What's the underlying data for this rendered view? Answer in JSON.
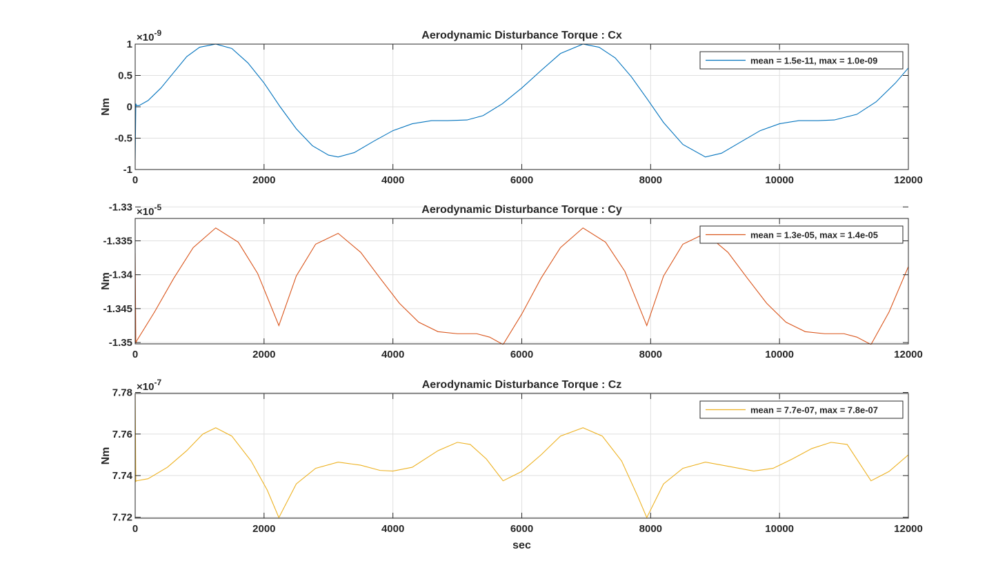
{
  "chart_data": [
    {
      "type": "line",
      "title": "Aerodynamic Disturbance Torque : Cx",
      "ylabel": "Nm",
      "xlabel": "",
      "xlim": [
        0,
        12000
      ],
      "ylim": [
        -1,
        1
      ],
      "exponent_base": "×10",
      "exponent_power": "-9",
      "xticks": [
        0,
        2000,
        4000,
        6000,
        8000,
        10000,
        12000
      ],
      "xtick_labels": [
        "0",
        "2000",
        "4000",
        "6000",
        "8000",
        "10000",
        "12000"
      ],
      "yticks": [
        -1,
        -0.5,
        0,
        0.5,
        1
      ],
      "ytick_labels": [
        "-1",
        "-0.5",
        "0",
        "0.5",
        "1"
      ],
      "grid": true,
      "legend_position": "top-right",
      "series": [
        {
          "name": "mean = 1.5e-11, max = 1.0e-09",
          "color": "#0072BD",
          "x": [
            0,
            10,
            20,
            60,
            200,
            400,
            600,
            800,
            1000,
            1250,
            1500,
            1750,
            2000,
            2250,
            2500,
            2750,
            3000,
            3150,
            3400,
            3700,
            4000,
            4300,
            4600,
            4850,
            5150,
            5400,
            5700,
            6000,
            6300,
            6600,
            6950,
            7200,
            7450,
            7700,
            7950,
            8200,
            8500,
            8850,
            9100,
            9400,
            9700,
            10000,
            10300,
            10600,
            10850,
            11200,
            11500,
            11800,
            12000
          ],
          "y": [
            -0.85,
            0.05,
            0.02,
            0.02,
            0.1,
            0.3,
            0.55,
            0.8,
            0.95,
            1.0,
            0.93,
            0.7,
            0.38,
            0.0,
            -0.35,
            -0.62,
            -0.77,
            -0.8,
            -0.73,
            -0.55,
            -0.38,
            -0.27,
            -0.22,
            -0.22,
            -0.21,
            -0.14,
            0.05,
            0.3,
            0.58,
            0.85,
            1.0,
            0.95,
            0.78,
            0.48,
            0.12,
            -0.25,
            -0.6,
            -0.8,
            -0.74,
            -0.56,
            -0.38,
            -0.27,
            -0.22,
            -0.22,
            -0.21,
            -0.12,
            0.08,
            0.38,
            0.62
          ]
        }
      ]
    },
    {
      "type": "line",
      "title": "Aerodynamic Disturbance Torque : Cy",
      "ylabel": "Nm",
      "xlabel": "",
      "xlim": [
        0,
        12000
      ],
      "ylim": [
        -1.3502,
        -1.3317
      ],
      "exponent_base": "×10",
      "exponent_power": "-5",
      "xticks": [
        0,
        2000,
        4000,
        6000,
        8000,
        10000,
        12000
      ],
      "xtick_labels": [
        "0",
        "2000",
        "4000",
        "6000",
        "8000",
        "10000",
        "12000"
      ],
      "yticks": [
        -1.35,
        -1.345,
        -1.34,
        -1.335,
        -1.33
      ],
      "ytick_labels": [
        "-1.35",
        "-1.345",
        "-1.34",
        "-1.335",
        "-1.33"
      ],
      "grid": true,
      "legend_position": "top-right",
      "series": [
        {
          "name": "mean = 1.3e-05, max = 1.4e-05",
          "color": "#D95319",
          "x": [
            0,
            10,
            20,
            300,
            600,
            900,
            1250,
            1600,
            1900,
            2230,
            2500,
            2800,
            3150,
            3500,
            3800,
            4100,
            4400,
            4700,
            5000,
            5300,
            5500,
            5710,
            6000,
            6300,
            6600,
            6950,
            7300,
            7600,
            7940,
            8200,
            8500,
            8850,
            9200,
            9500,
            9800,
            10100,
            10400,
            10700,
            11000,
            11200,
            11420,
            11700,
            12000
          ],
          "y": [
            -1.3368,
            -1.3501,
            -1.3498,
            -1.3455,
            -1.3405,
            -1.336,
            -1.3331,
            -1.3352,
            -1.3398,
            -1.3475,
            -1.3402,
            -1.3355,
            -1.3339,
            -1.3367,
            -1.3405,
            -1.3442,
            -1.347,
            -1.3484,
            -1.3487,
            -1.3487,
            -1.3492,
            -1.3503,
            -1.3458,
            -1.3405,
            -1.336,
            -1.3331,
            -1.3352,
            -1.3395,
            -1.3475,
            -1.3402,
            -1.3355,
            -1.3339,
            -1.3367,
            -1.3405,
            -1.3442,
            -1.347,
            -1.3484,
            -1.3487,
            -1.3487,
            -1.3492,
            -1.3503,
            -1.3455,
            -1.3388
          ]
        }
      ]
    },
    {
      "type": "line",
      "title": "Aerodynamic Disturbance Torque : Cz",
      "ylabel": "Nm",
      "xlabel": "sec",
      "xlim": [
        0,
        12000
      ],
      "ylim": [
        7.7195,
        7.7795
      ],
      "exponent_base": "×10",
      "exponent_power": "-7",
      "xticks": [
        0,
        2000,
        4000,
        6000,
        8000,
        10000,
        12000
      ],
      "xtick_labels": [
        "0",
        "2000",
        "4000",
        "6000",
        "8000",
        "10000",
        "12000"
      ],
      "yticks": [
        7.72,
        7.74,
        7.76,
        7.78
      ],
      "ytick_labels": [
        "7.72",
        "7.74",
        "7.76",
        "7.78"
      ],
      "grid": true,
      "legend_position": "top-right",
      "series": [
        {
          "name": "mean = 7.7e-07, max = 7.8e-07",
          "color": "#EDB120",
          "x": [
            0,
            10,
            20,
            200,
            500,
            800,
            1050,
            1250,
            1500,
            1800,
            2050,
            2230,
            2500,
            2800,
            3150,
            3500,
            3800,
            4000,
            4300,
            4700,
            5000,
            5200,
            5450,
            5710,
            6000,
            6300,
            6600,
            6950,
            7250,
            7550,
            7800,
            7940,
            8200,
            8500,
            8850,
            9200,
            9600,
            9900,
            10200,
            10500,
            10800,
            11050,
            11420,
            11700,
            12000
          ],
          "y": [
            7.7795,
            7.7372,
            7.7375,
            7.7385,
            7.744,
            7.752,
            7.76,
            7.763,
            7.759,
            7.747,
            7.733,
            7.7198,
            7.736,
            7.7435,
            7.7465,
            7.745,
            7.7425,
            7.7422,
            7.744,
            7.752,
            7.756,
            7.755,
            7.748,
            7.7375,
            7.742,
            7.75,
            7.759,
            7.763,
            7.759,
            7.747,
            7.73,
            7.7198,
            7.736,
            7.7435,
            7.7465,
            7.7445,
            7.7422,
            7.7435,
            7.748,
            7.753,
            7.756,
            7.755,
            7.7375,
            7.742,
            7.75
          ]
        }
      ]
    }
  ]
}
